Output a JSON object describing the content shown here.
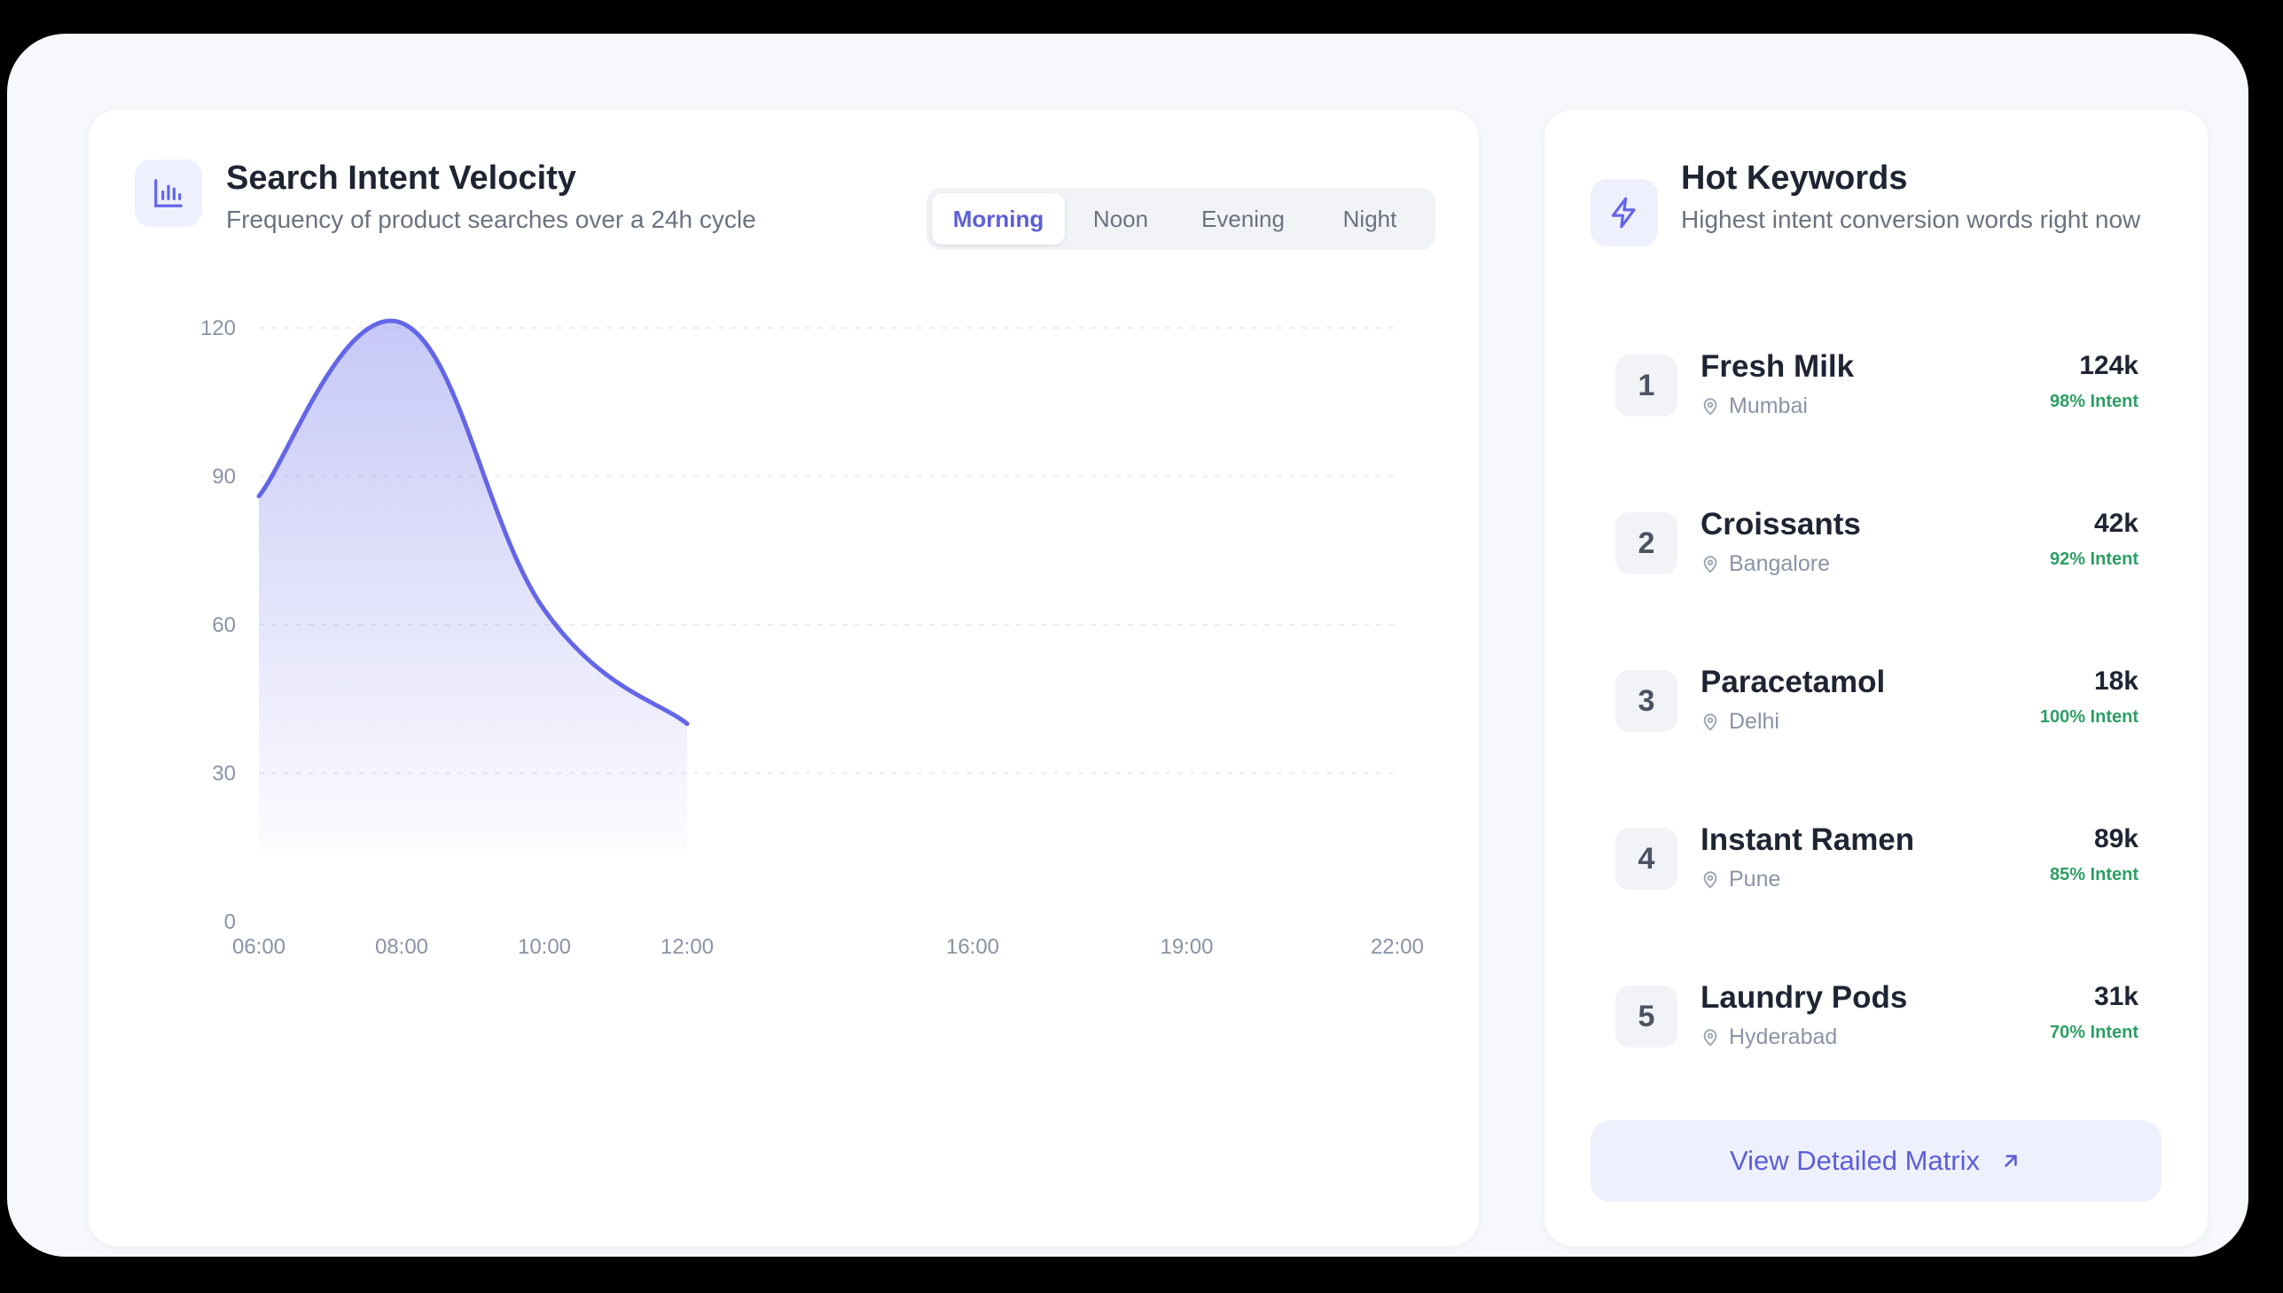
{
  "velocity_panel": {
    "title": "Search Intent Velocity",
    "subtitle": "Frequency of product searches over a 24h cycle",
    "icon": "bar-chart-icon",
    "tabs": [
      {
        "label": "Morning",
        "active": true
      },
      {
        "label": "Noon",
        "active": false
      },
      {
        "label": "Evening",
        "active": false
      },
      {
        "label": "Night",
        "active": false
      }
    ]
  },
  "chart_data": {
    "type": "area",
    "title": "",
    "xlabel": "",
    "ylabel": "",
    "x_ticks": [
      "06:00",
      "08:00",
      "10:00",
      "12:00",
      "16:00",
      "19:00",
      "22:00"
    ],
    "y_ticks": [
      0,
      30,
      60,
      90,
      120
    ],
    "ylim": [
      0,
      120
    ],
    "grid": true,
    "series": [
      {
        "x": [
          "06:00",
          "08:00",
          "10:00",
          "12:00"
        ],
        "values": [
          86,
          121,
          63,
          40
        ]
      }
    ],
    "color": "#6366e8"
  },
  "keywords_panel": {
    "title": "Hot Keywords",
    "subtitle": "Highest intent conversion words right now",
    "icon": "lightning-icon",
    "items": [
      {
        "rank": "1",
        "name": "Fresh Milk",
        "location": "Mumbai",
        "count": "124k",
        "intent": "98% Intent"
      },
      {
        "rank": "2",
        "name": "Croissants",
        "location": "Bangalore",
        "count": "42k",
        "intent": "92% Intent"
      },
      {
        "rank": "3",
        "name": "Paracetamol",
        "location": "Delhi",
        "count": "18k",
        "intent": "100% Intent"
      },
      {
        "rank": "4",
        "name": "Instant Ramen",
        "location": "Pune",
        "count": "89k",
        "intent": "85% Intent"
      },
      {
        "rank": "5",
        "name": "Laundry Pods",
        "location": "Hyderabad",
        "count": "31k",
        "intent": "70% Intent"
      }
    ],
    "cta_label": "View Detailed Matrix",
    "cta_icon": "arrow-up-right-icon"
  },
  "colors": {
    "accent": "#5c5fd8",
    "line": "#6366e8",
    "intent_green": "#2e9e64"
  }
}
